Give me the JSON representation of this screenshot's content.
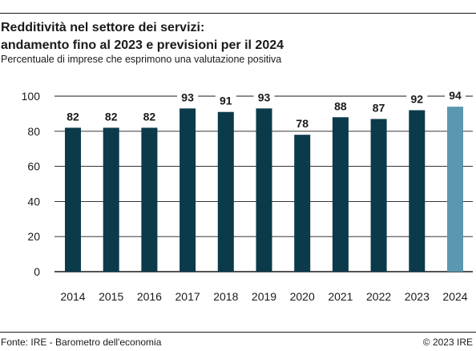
{
  "header": {
    "title_line1": "Redditività nel settore dei servizi:",
    "title_line2": "andamento fino al 2023 e previsioni per il 2024",
    "subtitle": "Percentuale di imprese che esprimono una valutazione positiva"
  },
  "footer": {
    "source": "Fonte: IRE - Barometro dell'economia",
    "copyright": "© 2023 IRE"
  },
  "colors": {
    "bar_actual": "#0b3a4b",
    "bar_forecast": "#5b97b0",
    "grid": "#1a1a1a",
    "text": "#1a1a1a"
  },
  "chart_data": {
    "type": "bar",
    "title": "Redditività nel settore dei servizi: andamento fino al 2023 e previsioni per il 2024",
    "subtitle": "Percentuale di imprese che esprimono una valutazione positiva",
    "xlabel": "",
    "ylabel": "",
    "categories": [
      "2014",
      "2015",
      "2016",
      "2017",
      "2018",
      "2019",
      "2020",
      "2021",
      "2022",
      "2023",
      "2024"
    ],
    "values": [
      82,
      82,
      82,
      93,
      91,
      93,
      78,
      88,
      87,
      92,
      94
    ],
    "forecast": [
      false,
      false,
      false,
      false,
      false,
      false,
      false,
      false,
      false,
      false,
      true
    ],
    "data_labels": [
      "82",
      "82",
      "82",
      "93",
      "91",
      "93",
      "78",
      "88",
      "87",
      "92",
      "94"
    ],
    "ylim": [
      0,
      100
    ],
    "yticks": [
      0,
      20,
      40,
      60,
      80,
      100
    ],
    "grid": true,
    "legend": "none"
  }
}
